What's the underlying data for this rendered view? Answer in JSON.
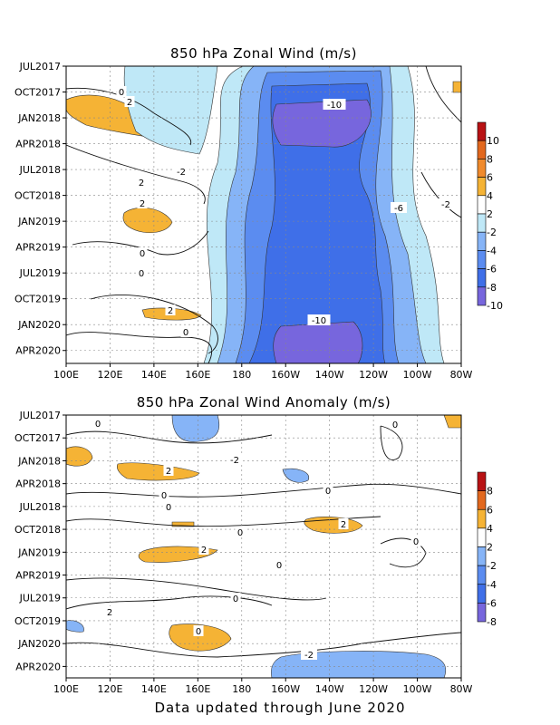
{
  "footer": "Data updated through June 2020",
  "palette": {
    "purple": "#7766dd",
    "blue": "#3f6fe8",
    "midblue": "#5b8cf0",
    "lightblue": "#86b4f7",
    "paleblue": "#bfe8f7",
    "orange": "#f5b335",
    "red": "#e2681e",
    "darkred": "#b81214"
  },
  "chart_data": [
    {
      "type": "heatmap",
      "title": "850 hPa Zonal Wind (m/s)",
      "x_ticks": [
        "100E",
        "120E",
        "140E",
        "160E",
        "180",
        "160W",
        "140W",
        "120W",
        "100W",
        "80W"
      ],
      "y_ticks": [
        "JUL2017",
        "OCT2017",
        "JAN2018",
        "APR2018",
        "JUL2018",
        "OCT2018",
        "JAN2019",
        "APR2019",
        "JUL2019",
        "OCT2019",
        "JAN2020",
        "APR2020"
      ],
      "contour_labels": [
        "-10",
        "0",
        "2",
        "-2",
        "2",
        "0",
        "-6",
        "-2",
        "2",
        "0",
        "2",
        "0",
        "-10"
      ],
      "colorbar": {
        "labels": [
          "10",
          "8",
          "6",
          "4",
          "2",
          "-2",
          "-4",
          "-6",
          "-8",
          "-10"
        ],
        "colors": [
          "#b81214",
          "#e2681e",
          "#f08a2c",
          "#f5b335",
          "#ffffff",
          "#bfe8f7",
          "#86b4f7",
          "#5b8cf0",
          "#3f6fe8",
          "#7766dd"
        ]
      },
      "grid": true
    },
    {
      "type": "heatmap",
      "title": "850 hPa Zonal Wind Anomaly (m/s)",
      "x_ticks": [
        "100E",
        "120E",
        "140E",
        "160E",
        "180",
        "160W",
        "140W",
        "120W",
        "100W",
        "80W"
      ],
      "y_ticks": [
        "JUL2017",
        "OCT2017",
        "JAN2018",
        "APR2018",
        "JUL2018",
        "OCT2018",
        "JAN2019",
        "APR2019",
        "JUL2019",
        "OCT2019",
        "JAN2020",
        "APR2020"
      ],
      "contour_labels": [
        "0",
        "0",
        "-2",
        "2",
        "0",
        "0",
        "0",
        "2",
        "0",
        "2",
        "0",
        "0",
        "0",
        "2",
        "0",
        "-2"
      ],
      "colorbar": {
        "labels": [
          "8",
          "6",
          "4",
          "2",
          "-2",
          "-4",
          "-6",
          "-8"
        ],
        "colors": [
          "#b81214",
          "#e2681e",
          "#f5b335",
          "#ffffff",
          "#86b4f7",
          "#5b8cf0",
          "#3f6fe8",
          "#7766dd"
        ]
      },
      "grid": true
    }
  ]
}
